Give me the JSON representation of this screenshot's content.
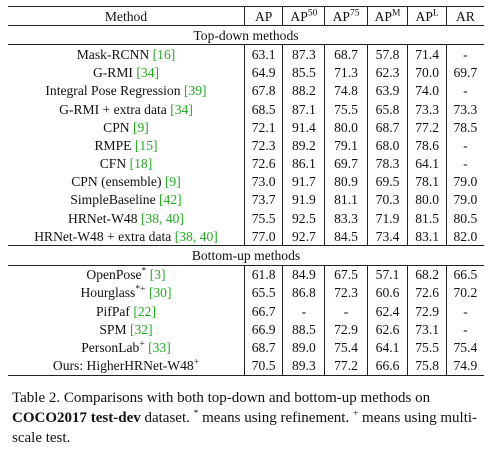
{
  "header": {
    "method": "Method",
    "cols": [
      {
        "base": "AP",
        "sup": ""
      },
      {
        "base": "AP",
        "sup": "50"
      },
      {
        "base": "AP",
        "sup": "75"
      },
      {
        "base": "AP",
        "sup": "M"
      },
      {
        "base": "AP",
        "sup": "L"
      },
      {
        "base": "AR",
        "sup": ""
      }
    ]
  },
  "sections": [
    {
      "title": "Top-down methods",
      "rows": [
        {
          "name": "Mask-RCNN",
          "mark": "",
          "cite": "[16]",
          "values": [
            "63.1",
            "87.3",
            "68.7",
            "57.8",
            "71.4",
            "-"
          ]
        },
        {
          "name": "G-RMI",
          "mark": "",
          "cite": "[34]",
          "values": [
            "64.9",
            "85.5",
            "71.3",
            "62.3",
            "70.0",
            "69.7"
          ]
        },
        {
          "name": "Integral Pose Regression",
          "mark": "",
          "cite": "[39]",
          "values": [
            "67.8",
            "88.2",
            "74.8",
            "63.9",
            "74.0",
            "-"
          ]
        },
        {
          "name": "G-RMI + extra data",
          "mark": "",
          "cite": "[34]",
          "values": [
            "68.5",
            "87.1",
            "75.5",
            "65.8",
            "73.3",
            "73.3"
          ]
        },
        {
          "name": "CPN",
          "mark": "",
          "cite": "[9]",
          "values": [
            "72.1",
            "91.4",
            "80.0",
            "68.7",
            "77.2",
            "78.5"
          ]
        },
        {
          "name": "RMPE",
          "mark": "",
          "cite": "[15]",
          "values": [
            "72.3",
            "89.2",
            "79.1",
            "68.0",
            "78.6",
            "-"
          ]
        },
        {
          "name": "CFN",
          "mark": "",
          "cite": "[18]",
          "values": [
            "72.6",
            "86.1",
            "69.7",
            "78.3",
            "64.1",
            "-"
          ]
        },
        {
          "name": "CPN (ensemble)",
          "mark": "",
          "cite": "[9]",
          "values": [
            "73.0",
            "91.7",
            "80.9",
            "69.5",
            "78.1",
            "79.0"
          ]
        },
        {
          "name": "SimpleBaseline",
          "mark": "",
          "cite": "[42]",
          "values": [
            "73.7",
            "91.9",
            "81.1",
            "70.3",
            "80.0",
            "79.0"
          ]
        },
        {
          "name": "HRNet-W48",
          "mark": "",
          "cite": "[38, 40]",
          "values": [
            "75.5",
            "92.5",
            "83.3",
            "71.9",
            "81.5",
            "80.5"
          ]
        },
        {
          "name": "HRNet-W48 + extra data",
          "mark": "",
          "cite": "[38, 40]",
          "values": [
            "77.0",
            "92.7",
            "84.5",
            "73.4",
            "83.1",
            "82.0"
          ]
        }
      ]
    },
    {
      "title": "Bottom-up methods",
      "rows": [
        {
          "name": "OpenPose",
          "mark": "*",
          "cite": "[3]",
          "values": [
            "61.8",
            "84.9",
            "67.5",
            "57.1",
            "68.2",
            "66.5"
          ]
        },
        {
          "name": "Hourglass",
          "mark": "*+",
          "cite": "[30]",
          "values": [
            "65.5",
            "86.8",
            "72.3",
            "60.6",
            "72.6",
            "70.2"
          ]
        },
        {
          "name": "PifPaf",
          "mark": "",
          "cite": "[22]",
          "values": [
            "66.7",
            "-",
            "-",
            "62.4",
            "72.9",
            "-"
          ]
        },
        {
          "name": "SPM",
          "mark": "",
          "cite": "[32]",
          "values": [
            "66.9",
            "88.5",
            "72.9",
            "62.6",
            "73.1",
            "-"
          ]
        },
        {
          "name": "PersonLab",
          "mark": "+",
          "cite": "[33]",
          "values": [
            "68.7",
            "89.0",
            "75.4",
            "64.1",
            "75.5",
            "75.4"
          ]
        },
        {
          "name": "Ours: HigherHRNet-W48",
          "mark": "+",
          "cite": "",
          "values": [
            "70.5",
            "89.3",
            "77.2",
            "66.6",
            "75.8",
            "74.9"
          ]
        }
      ]
    }
  ],
  "caption": {
    "label": "Table 2. Comparisons with both top-down and bottom-up methods on",
    "dataset": "COCO2017 test-dev",
    "mid": " dataset.",
    "star": "*",
    "star_text": " means using refinement.",
    "plus": "+",
    "plus_text": " means using multi-scale test."
  },
  "colors": {
    "citation": "#22aa22",
    "text": "#111111"
  }
}
